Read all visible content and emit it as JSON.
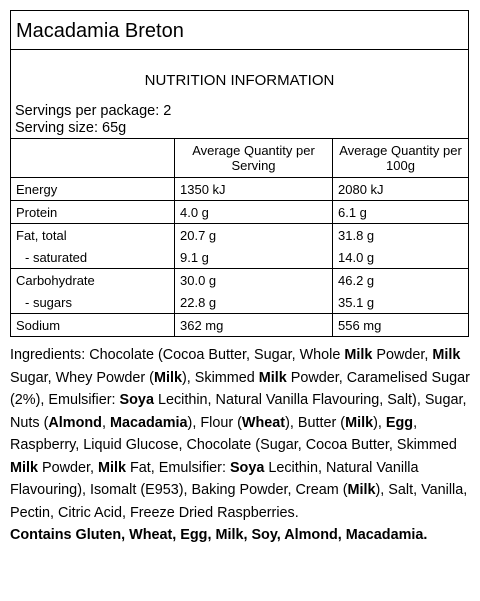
{
  "title": "Macadamia Breton",
  "nutrition": {
    "heading": "NUTRITION INFORMATION",
    "servings_per_package": "Servings per package: 2",
    "serving_size": "Serving size: 65g",
    "header": [
      "Average Quantity per Serving",
      "Average Quantity per 100g"
    ],
    "groups": [
      [
        [
          "Energy",
          "1350 kJ",
          "2080 kJ"
        ]
      ],
      [
        [
          "Protein",
          "4.0 g",
          "6.1 g"
        ]
      ],
      [
        [
          "Fat, total",
          "20.7 g",
          "31.8 g"
        ],
        [
          "- saturated",
          "9.1 g",
          "14.0 g"
        ]
      ],
      [
        [
          "Carbohydrate",
          "30.0 g",
          "46.2 g"
        ],
        [
          "- sugars",
          "22.8 g",
          "35.1 g"
        ]
      ],
      [
        [
          "Sodium",
          "362 mg",
          "556 mg"
        ]
      ]
    ]
  },
  "ingredients": [
    {
      "text": "Ingredients: Chocolate (Cocoa Butter, Sugar, Whole "
    },
    {
      "text": "Milk",
      "bold": true
    },
    {
      "text": " Powder, "
    },
    {
      "text": "Milk",
      "bold": true
    },
    {
      "text": " Sugar, Whey Powder ("
    },
    {
      "text": "Milk",
      "bold": true
    },
    {
      "text": "), Skimmed "
    },
    {
      "text": "Milk",
      "bold": true
    },
    {
      "text": " Powder, Caramelised Sugar (2%), Emulsifier: "
    },
    {
      "text": "Soya",
      "bold": true
    },
    {
      "text": " Lecithin, Natural Vanilla Flavouring, Salt), Sugar, Nuts ("
    },
    {
      "text": "Almond",
      "bold": true
    },
    {
      "text": ", "
    },
    {
      "text": "Macadamia",
      "bold": true
    },
    {
      "text": "), Flour ("
    },
    {
      "text": "Wheat",
      "bold": true
    },
    {
      "text": "), Butter ("
    },
    {
      "text": "Milk",
      "bold": true
    },
    {
      "text": "), "
    },
    {
      "text": "Egg",
      "bold": true
    },
    {
      "text": ", Raspberry, Liquid Glucose, Chocolate (Sugar, Cocoa Butter, Skimmed "
    },
    {
      "text": "Milk",
      "bold": true
    },
    {
      "text": " Powder, "
    },
    {
      "text": "Milk",
      "bold": true
    },
    {
      "text": " Fat, Emulsifier: "
    },
    {
      "text": "Soya",
      "bold": true
    },
    {
      "text": " Lecithin, Natural Vanilla Flavouring), Isomalt (E953), Baking Powder, Cream ("
    },
    {
      "text": "Milk",
      "bold": true
    },
    {
      "text": "), Salt, Vanilla, Pectin, Citric Acid, Freeze Dried Raspberries."
    }
  ],
  "allergens": "Contains Gluten, Wheat, Egg, Milk, Soy, Almond, Macadamia."
}
